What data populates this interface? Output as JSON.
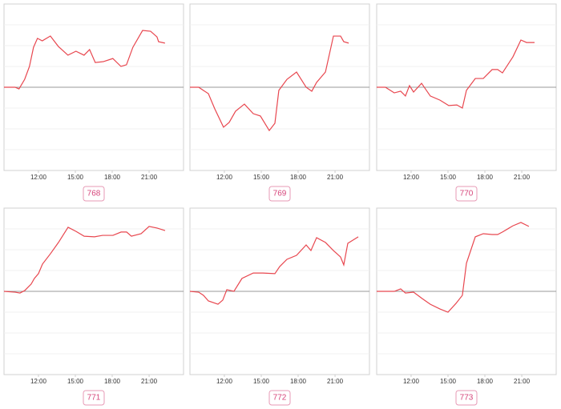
{
  "chart_data": [
    {
      "type": "line",
      "title": "768",
      "color": "#e8474f",
      "xlim": [
        9.2,
        23.8
      ],
      "ylim": [
        -4,
        4
      ],
      "yticks": [
        -3,
        -2,
        -1,
        0,
        1,
        2,
        3
      ],
      "grid": true,
      "xticks": [
        {
          "value": 12,
          "label": "12:00"
        },
        {
          "value": 15,
          "label": "15:00"
        },
        {
          "value": 18,
          "label": "18:00"
        },
        {
          "value": 21,
          "label": "21:00"
        }
      ],
      "x": [
        9.2,
        10.1,
        10.42,
        10.88,
        11.27,
        11.6,
        11.92,
        12.31,
        12.97,
        13.62,
        14.4,
        15.05,
        15.71,
        16.16,
        16.62,
        17.27,
        18.05,
        18.71,
        19.16,
        19.68,
        20.47,
        21.12,
        21.64,
        21.77,
        22.29
      ],
      "values": [
        0,
        0,
        -0.08,
        0.38,
        1.0,
        1.92,
        2.35,
        2.23,
        2.46,
        1.96,
        1.54,
        1.73,
        1.54,
        1.81,
        1.19,
        1.23,
        1.38,
        1.0,
        1.08,
        1.92,
        2.73,
        2.69,
        2.42,
        2.19,
        2.12
      ]
    },
    {
      "type": "line",
      "title": "769",
      "color": "#e8474f",
      "xlim": [
        9.2,
        23.8
      ],
      "ylim": [
        -4,
        4
      ],
      "yticks": [
        -3,
        -2,
        -1,
        0,
        1,
        2,
        3
      ],
      "grid": true,
      "xticks": [
        {
          "value": 12,
          "label": "12:00"
        },
        {
          "value": 15,
          "label": "15:00"
        },
        {
          "value": 18,
          "label": "18:00"
        },
        {
          "value": 21,
          "label": "21:00"
        }
      ],
      "x": [
        9.2,
        9.91,
        10.7,
        11.22,
        11.93,
        12.39,
        12.91,
        13.63,
        14.35,
        14.93,
        15.65,
        16.11,
        16.43,
        17.09,
        17.87,
        18.65,
        19.11,
        19.5,
        20.22,
        20.87,
        21.45,
        21.71,
        22.11
      ],
      "values": [
        0,
        0,
        -0.31,
        -1.04,
        -1.92,
        -1.69,
        -1.15,
        -0.81,
        -1.27,
        -1.38,
        -2.08,
        -1.73,
        -0.15,
        0.38,
        0.73,
        0,
        -0.19,
        0.23,
        0.73,
        2.46,
        2.46,
        2.19,
        2.12
      ]
    },
    {
      "type": "line",
      "title": "770",
      "color": "#e8474f",
      "xlim": [
        9.2,
        23.8
      ],
      "ylim": [
        -4,
        4
      ],
      "yticks": [
        -3,
        -2,
        -1,
        0,
        1,
        2,
        3
      ],
      "grid": true,
      "xticks": [
        {
          "value": 12,
          "label": "12:00"
        },
        {
          "value": 15,
          "label": "15:00"
        },
        {
          "value": 18,
          "label": "18:00"
        },
        {
          "value": 21,
          "label": "21:00"
        }
      ],
      "x": [
        9.2,
        9.91,
        10.63,
        11.15,
        11.54,
        11.87,
        12.2,
        12.85,
        13.56,
        14.35,
        15.06,
        15.72,
        16.17,
        16.5,
        17.22,
        17.87,
        18.59,
        19.04,
        19.43,
        20.28,
        20.93,
        21.39,
        22.04
      ],
      "values": [
        0,
        0,
        -0.27,
        -0.19,
        -0.42,
        0.08,
        -0.23,
        0.19,
        -0.42,
        -0.62,
        -0.88,
        -0.85,
        -1.0,
        -0.15,
        0.42,
        0.42,
        0.85,
        0.85,
        0.69,
        1.46,
        2.27,
        2.15,
        2.15
      ]
    },
    {
      "type": "line",
      "title": "771",
      "color": "#e8474f",
      "xlim": [
        9.2,
        23.8
      ],
      "ylim": [
        -4,
        4
      ],
      "yticks": [
        -3,
        -2,
        -1,
        0,
        1,
        2,
        3
      ],
      "grid": true,
      "xticks": [
        {
          "value": 12,
          "label": "12:00"
        },
        {
          "value": 15,
          "label": "15:00"
        },
        {
          "value": 18,
          "label": "18:00"
        },
        {
          "value": 21,
          "label": "21:00"
        }
      ],
      "x": [
        9.2,
        10.11,
        10.5,
        10.89,
        11.41,
        11.67,
        12.0,
        12.33,
        12.98,
        13.63,
        14.41,
        15.06,
        15.72,
        16.56,
        17.22,
        18.06,
        18.72,
        19.17,
        19.56,
        20.35,
        21.0,
        21.65,
        22.3
      ],
      "values": [
        0,
        -0.04,
        -0.08,
        0.04,
        0.35,
        0.62,
        0.85,
        1.31,
        1.81,
        2.35,
        3.08,
        2.88,
        2.65,
        2.62,
        2.69,
        2.69,
        2.85,
        2.85,
        2.65,
        2.77,
        3.12,
        3.04,
        2.92
      ]
    },
    {
      "type": "line",
      "title": "772",
      "color": "#e8474f",
      "xlim": [
        9.2,
        23.8
      ],
      "ylim": [
        -4,
        4
      ],
      "yticks": [
        -3,
        -2,
        -1,
        0,
        1,
        2,
        3
      ],
      "grid": true,
      "xticks": [
        {
          "value": 12,
          "label": "12:00"
        },
        {
          "value": 15,
          "label": "15:00"
        },
        {
          "value": 18,
          "label": "18:00"
        },
        {
          "value": 21,
          "label": "21:00"
        }
      ],
      "x": [
        9.2,
        9.91,
        10.3,
        10.7,
        11.48,
        11.87,
        12.2,
        12.78,
        13.43,
        14.35,
        15.13,
        16.11,
        16.5,
        17.09,
        17.87,
        18.65,
        19.04,
        19.5,
        20.22,
        20.87,
        21.45,
        21.71,
        22.04,
        22.89
      ],
      "values": [
        0,
        -0.04,
        -0.19,
        -0.46,
        -0.62,
        -0.42,
        0.08,
        0,
        0.62,
        0.88,
        0.88,
        0.85,
        1.19,
        1.54,
        1.73,
        2.23,
        1.96,
        2.58,
        2.35,
        1.96,
        1.65,
        1.27,
        2.31,
        2.62
      ]
    },
    {
      "type": "line",
      "title": "773",
      "color": "#e8474f",
      "xlim": [
        9.2,
        23.8
      ],
      "ylim": [
        -4,
        4
      ],
      "yticks": [
        -3,
        -2,
        -1,
        0,
        1,
        2,
        3
      ],
      "grid": true,
      "xticks": [
        {
          "value": 12,
          "label": "12:00"
        },
        {
          "value": 15,
          "label": "15:00"
        },
        {
          "value": 18,
          "label": "18:00"
        },
        {
          "value": 21,
          "label": "21:00"
        }
      ],
      "x": [
        9.2,
        10.63,
        11.15,
        11.54,
        12.2,
        12.91,
        13.56,
        14.35,
        15.0,
        15.65,
        16.17,
        16.5,
        17.22,
        17.87,
        18.59,
        19.04,
        19.43,
        20.28,
        20.93,
        21.58
      ],
      "values": [
        0,
        0,
        0.12,
        -0.08,
        -0.04,
        -0.35,
        -0.62,
        -0.85,
        -1.0,
        -0.58,
        -0.19,
        1.35,
        2.62,
        2.77,
        2.73,
        2.73,
        2.85,
        3.15,
        3.31,
        3.12
      ]
    }
  ]
}
